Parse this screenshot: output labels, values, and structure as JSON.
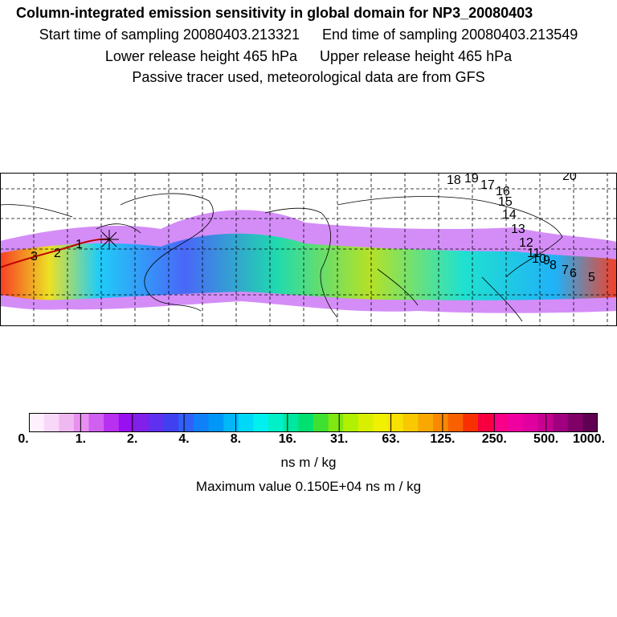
{
  "header": {
    "title": "Column-integrated emission sensitivity in global domain for NP3_20080403",
    "start_time": "Start time of sampling 20080403.213321",
    "end_time": "End time of sampling 20080403.213549",
    "lower_height": "Lower release height  465 hPa",
    "upper_height": "Upper release height  465 hPa",
    "note": "Passive tracer used, meteorological data are from GFS"
  },
  "map": {
    "labels": [
      "3",
      "2",
      "1",
      "18",
      "19",
      "17",
      "16",
      "15",
      "14",
      "13",
      "12",
      "11",
      "10",
      "9",
      "8",
      "7",
      "6",
      "5",
      "20"
    ]
  },
  "colorbar": {
    "ticks": [
      "0.",
      "1.",
      "2.",
      "4.",
      "8.",
      "16.",
      "31.",
      "63.",
      "125.",
      "250.",
      "500.",
      "1000."
    ],
    "colors": [
      "#fff0ff",
      "#f8d8f8",
      "#f0b8f0",
      "#e890f0",
      "#d060f0",
      "#b830f0",
      "#9810f0",
      "#8020e8",
      "#6030f0",
      "#4040f0",
      "#3060f8",
      "#1080f8",
      "#0098f8",
      "#00b8f8",
      "#00d8f8",
      "#00f0f0",
      "#00f0c8",
      "#00e8a0",
      "#00e070",
      "#40e030",
      "#80e810",
      "#b0f000",
      "#d8f000",
      "#f0f000",
      "#f8e000",
      "#f8c800",
      "#f8a800",
      "#f88800",
      "#f86000",
      "#f83000",
      "#f80040",
      "#f80088",
      "#f000a0",
      "#e000a0",
      "#c80090",
      "#a00080",
      "#800068",
      "#600050"
    ],
    "unit": "ns m / kg",
    "max_value": "Maximum value  0.150E+04 ns m / kg"
  }
}
